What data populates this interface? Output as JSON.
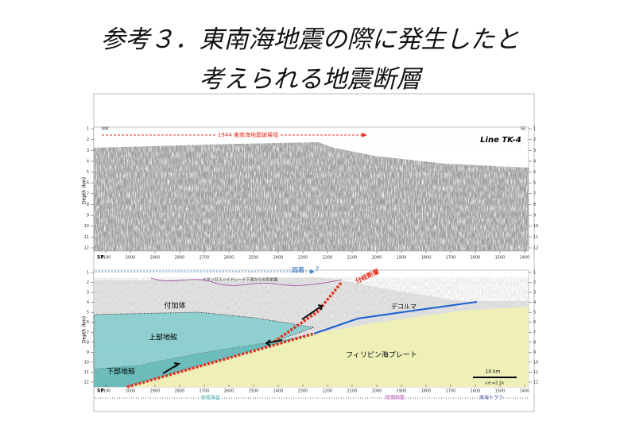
{
  "title": [
    "参考３．東南海地震の際に発生したと",
    "考えられる地震断層"
  ],
  "depth_label": "Depth (km)",
  "sp_label": "SP",
  "depth_ticks": [
    1,
    2,
    3,
    4,
    5,
    6,
    7,
    8,
    9,
    10,
    11,
    12
  ],
  "sp_ticks": [
    3100,
    3000,
    2900,
    2800,
    2700,
    2600,
    2500,
    2400,
    2300,
    2200,
    2100,
    2000,
    1900,
    1800,
    1700,
    1600,
    1500,
    1400
  ],
  "top_panel": {
    "nw": "NW",
    "se": "SE",
    "rupture_zone": "1944 東南海地震破壊域",
    "line_name": "Line TK-4"
  },
  "bottom_panel": {
    "locked": "固着",
    "question": "?",
    "bsr": "メタンガスハイドレード下底からの反射面",
    "splay_fault": "分岐断層",
    "prism": "付加体",
    "decollement": "デコルマ",
    "upper_crust": "上部地殻",
    "lower_crust": "下部地殻",
    "plate": "フィリピン海プレート",
    "scale": "10 km",
    "ve": "v.e.=2.2x",
    "forearc": "前弧海盆",
    "slope": "陸側斜面",
    "trough": "南海トラフ"
  }
}
